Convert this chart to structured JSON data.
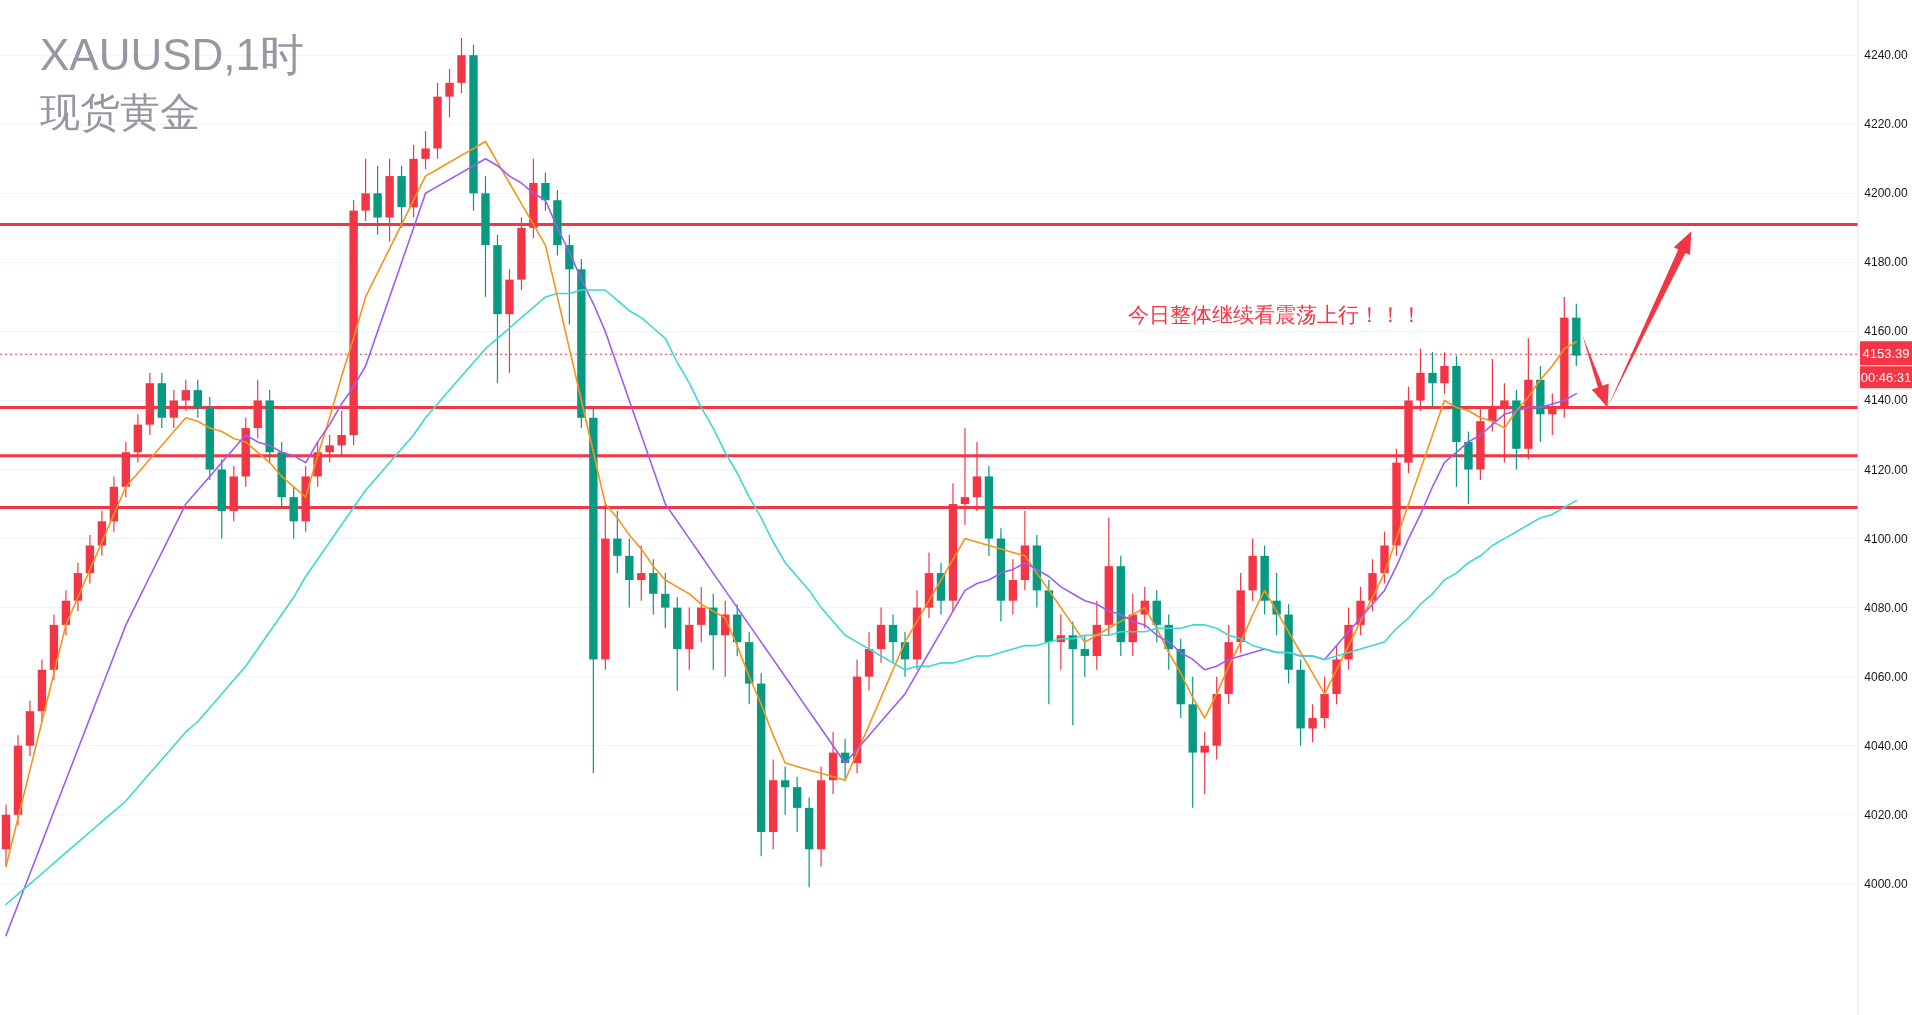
{
  "chart_data": {
    "type": "candlestick",
    "title": "XAUUSD,1时",
    "subtitle": "现货黄金",
    "categories": [
      null,
      null,
      null,
      null,
      null,
      null,
      null,
      null,
      null,
      null,
      null,
      null,
      null,
      null,
      null,
      null,
      null,
      null,
      null,
      null,
      null,
      null,
      null,
      null,
      null,
      null,
      null,
      null,
      null,
      null,
      null,
      null,
      null,
      null,
      null,
      null,
      null,
      null,
      null,
      null,
      null,
      null,
      null,
      null,
      null,
      null,
      null,
      null,
      null,
      null,
      null,
      null,
      null,
      null,
      null,
      null,
      null,
      null,
      null,
      null,
      null,
      null,
      null,
      null,
      null,
      null,
      null,
      null,
      null,
      null,
      null,
      null,
      null,
      null,
      null,
      null,
      null,
      null,
      null,
      null,
      null,
      null,
      null,
      null,
      null,
      null,
      null,
      null,
      null,
      null,
      null,
      null,
      null,
      null,
      null,
      null,
      null,
      null,
      null,
      null,
      null,
      null,
      null,
      null,
      null,
      null,
      null,
      null,
      null,
      null,
      null,
      null,
      null,
      null,
      null,
      null,
      null,
      null,
      null,
      null,
      null,
      null,
      null,
      null,
      null,
      null,
      null,
      null,
      null,
      null,
      null,
      null
    ],
    "ohlc": [
      [
        4010,
        4023,
        4005,
        4020
      ],
      [
        4020,
        4043,
        4017,
        4040
      ],
      [
        4040,
        4053,
        4037,
        4050
      ],
      [
        4050,
        4065,
        4047,
        4062
      ],
      [
        4062,
        4078,
        4059,
        4075
      ],
      [
        4075,
        4085,
        4072,
        4082
      ],
      [
        4082,
        4093,
        4079,
        4090
      ],
      [
        4090,
        4101,
        4087,
        4098
      ],
      [
        4098,
        4108,
        4095,
        4105
      ],
      [
        4105,
        4118,
        4102,
        4115
      ],
      [
        4115,
        4128,
        4112,
        4125
      ],
      [
        4125,
        4136,
        4122,
        4133
      ],
      [
        4133,
        4148,
        4130,
        4145
      ],
      [
        4145,
        4148,
        4132,
        4135
      ],
      [
        4135,
        4143,
        4132,
        4140
      ],
      [
        4140,
        4146,
        4137,
        4143
      ],
      [
        4143,
        4146,
        4135,
        4138
      ],
      [
        4138,
        4141,
        4117,
        4120
      ],
      [
        4120,
        4123,
        4100,
        4108
      ],
      [
        4108,
        4121,
        4105,
        4118
      ],
      [
        4118,
        4135,
        4115,
        4132
      ],
      [
        4132,
        4146,
        4129,
        4140
      ],
      [
        4140,
        4143,
        4122,
        4125
      ],
      [
        4125,
        4128,
        4109,
        4112
      ],
      [
        4112,
        4115,
        4100,
        4105
      ],
      [
        4105,
        4121,
        4102,
        4118
      ],
      [
        4118,
        4128,
        4115,
        4125
      ],
      [
        4125,
        4130,
        4122,
        4127
      ],
      [
        4127,
        4137,
        4124,
        4130
      ],
      [
        4130,
        4198,
        4127,
        4195
      ],
      [
        4195,
        4210,
        4192,
        4200
      ],
      [
        4200,
        4208,
        4188,
        4193
      ],
      [
        4193,
        4210,
        4186,
        4205
      ],
      [
        4205,
        4208,
        4190,
        4196
      ],
      [
        4196,
        4214,
        4193,
        4210
      ],
      [
        4210,
        4218,
        4207,
        4213
      ],
      [
        4213,
        4232,
        4210,
        4228
      ],
      [
        4228,
        4236,
        4222,
        4232
      ],
      [
        4232,
        4245,
        4229,
        4240
      ],
      [
        4240,
        4243,
        4195,
        4200
      ],
      [
        4200,
        4205,
        4170,
        4185
      ],
      [
        4185,
        4188,
        4145,
        4165
      ],
      [
        4165,
        4178,
        4148,
        4175
      ],
      [
        4175,
        4193,
        4172,
        4190
      ],
      [
        4190,
        4210,
        4187,
        4203
      ],
      [
        4203,
        4206,
        4195,
        4198
      ],
      [
        4198,
        4201,
        4182,
        4185
      ],
      [
        4185,
        4188,
        4162,
        4178
      ],
      [
        4178,
        4181,
        4132,
        4135
      ],
      [
        4135,
        4138,
        4032,
        4065
      ],
      [
        4065,
        4110,
        4062,
        4100
      ],
      [
        4100,
        4108,
        4090,
        4095
      ],
      [
        4095,
        4100,
        4080,
        4088
      ],
      [
        4088,
        4098,
        4082,
        4090
      ],
      [
        4090,
        4094,
        4078,
        4084
      ],
      [
        4084,
        4090,
        4074,
        4080
      ],
      [
        4080,
        4083,
        4056,
        4068
      ],
      [
        4068,
        4080,
        4062,
        4075
      ],
      [
        4075,
        4086,
        4070,
        4080
      ],
      [
        4080,
        4084,
        4062,
        4072
      ],
      [
        4072,
        4082,
        4060,
        4078
      ],
      [
        4078,
        4081,
        4066,
        4070
      ],
      [
        4070,
        4073,
        4052,
        4058
      ],
      [
        4058,
        4061,
        4008,
        4015
      ],
      [
        4015,
        4036,
        4010,
        4030
      ],
      [
        4030,
        4034,
        4020,
        4028
      ],
      [
        4028,
        4031,
        4015,
        4022
      ],
      [
        4022,
        4025,
        3999,
        4010
      ],
      [
        4010,
        4034,
        4005,
        4030
      ],
      [
        4030,
        4044,
        4026,
        4038
      ],
      [
        4038,
        4042,
        4030,
        4035
      ],
      [
        4035,
        4065,
        4032,
        4060
      ],
      [
        4060,
        4073,
        4056,
        4068
      ],
      [
        4068,
        4080,
        4064,
        4075
      ],
      [
        4075,
        4078,
        4064,
        4070
      ],
      [
        4070,
        4073,
        4060,
        4065
      ],
      [
        4065,
        4085,
        4062,
        4080
      ],
      [
        4080,
        4096,
        4077,
        4090
      ],
      [
        4090,
        4093,
        4078,
        4082
      ],
      [
        4082,
        4116,
        4079,
        4110
      ],
      [
        4110,
        4132,
        4104,
        4112
      ],
      [
        4112,
        4128,
        4108,
        4118
      ],
      [
        4118,
        4121,
        4095,
        4100
      ],
      [
        4100,
        4103,
        4076,
        4082
      ],
      [
        4082,
        4094,
        4078,
        4088
      ],
      [
        4088,
        4108,
        4085,
        4098
      ],
      [
        4098,
        4101,
        4080,
        4085
      ],
      [
        4085,
        4088,
        4052,
        4070
      ],
      [
        4070,
        4078,
        4062,
        4072
      ],
      [
        4072,
        4076,
        4046,
        4068
      ],
      [
        4068,
        4072,
        4060,
        4066
      ],
      [
        4066,
        4082,
        4062,
        4075
      ],
      [
        4075,
        4106,
        4072,
        4092
      ],
      [
        4092,
        4095,
        4066,
        4070
      ],
      [
        4070,
        4084,
        4066,
        4078
      ],
      [
        4078,
        4086,
        4074,
        4082
      ],
      [
        4082,
        4085,
        4070,
        4075
      ],
      [
        4075,
        4078,
        4062,
        4068
      ],
      [
        4068,
        4071,
        4048,
        4052
      ],
      [
        4052,
        4060,
        4022,
        4038
      ],
      [
        4038,
        4044,
        4026,
        4040
      ],
      [
        4040,
        4060,
        4036,
        4055
      ],
      [
        4055,
        4075,
        4052,
        4070
      ],
      [
        4070,
        4090,
        4067,
        4085
      ],
      [
        4085,
        4100,
        4082,
        4095
      ],
      [
        4095,
        4098,
        4078,
        4082
      ],
      [
        4082,
        4090,
        4072,
        4078
      ],
      [
        4078,
        4081,
        4058,
        4062
      ],
      [
        4062,
        4065,
        4040,
        4045
      ],
      [
        4045,
        4052,
        4041,
        4048
      ],
      [
        4048,
        4060,
        4045,
        4055
      ],
      [
        4055,
        4069,
        4052,
        4065
      ],
      [
        4065,
        4080,
        4062,
        4075
      ],
      [
        4075,
        4086,
        4072,
        4082
      ],
      [
        4082,
        4094,
        4079,
        4090
      ],
      [
        4090,
        4102,
        4087,
        4098
      ],
      [
        4098,
        4126,
        4095,
        4122
      ],
      [
        4122,
        4144,
        4119,
        4140
      ],
      [
        4140,
        4155,
        4137,
        4148
      ],
      [
        4148,
        4154,
        4138,
        4145
      ],
      [
        4145,
        4154,
        4142,
        4150
      ],
      [
        4150,
        4153,
        4115,
        4128
      ],
      [
        4128,
        4131,
        4110,
        4120
      ],
      [
        4120,
        4138,
        4117,
        4134
      ],
      [
        4134,
        4152,
        4131,
        4138
      ],
      [
        4138,
        4145,
        4122,
        4140
      ],
      [
        4140,
        4143,
        4120,
        4126
      ],
      [
        4126,
        4158,
        4123,
        4146
      ],
      [
        4146,
        4150,
        4128,
        4136
      ],
      [
        4136,
        4142,
        4130,
        4138
      ],
      [
        4138,
        4170,
        4135,
        4164
      ],
      [
        4164,
        4168,
        4150,
        4153
      ]
    ],
    "colors": [
      "#f23645",
      "#f23645",
      "#f23645",
      "#f23645",
      "#f23645",
      "#f23645",
      "#f23645",
      "#f23645",
      "#f23645",
      "#f23645",
      "#f23645",
      "#f23645",
      "#f23645",
      "#089981",
      "#f23645",
      "#f23645",
      "#089981",
      "#089981",
      "#089981",
      "#f23645",
      "#f23645",
      "#f23645",
      "#089981",
      "#089981",
      "#089981",
      "#f23645",
      "#f23645",
      "#f23645",
      "#f23645",
      "#f23645",
      "#f23645",
      "#089981",
      "#f23645",
      "#089981",
      "#f23645",
      "#f23645",
      "#f23645",
      "#f23645",
      "#f23645",
      "#089981",
      "#089981",
      "#089981",
      "#f23645",
      "#f23645",
      "#f23645",
      "#089981",
      "#089981",
      "#089981",
      "#089981",
      "#089981",
      "#f23645",
      "#089981",
      "#089981",
      "#f23645",
      "#089981",
      "#089981",
      "#089981",
      "#f23645",
      "#f23645",
      "#089981",
      "#f23645",
      "#089981",
      "#089981",
      "#089981",
      "#f23645",
      "#089981",
      "#089981",
      "#089981",
      "#f23645",
      "#f23645",
      "#089981",
      "#f23645",
      "#f23645",
      "#f23645",
      "#089981",
      "#089981",
      "#f23645",
      "#f23645",
      "#089981",
      "#f23645",
      "#f23645",
      "#f23645",
      "#089981",
      "#089981",
      "#f23645",
      "#f23645",
      "#089981",
      "#089981",
      "#f23645",
      "#089981",
      "#089981",
      "#f23645",
      "#f23645",
      "#089981",
      "#f23645",
      "#f23645",
      "#089981",
      "#089981",
      "#089981",
      "#089981",
      "#f23645",
      "#f23645",
      "#f23645",
      "#f23645",
      "#f23645",
      "#089981",
      "#089981",
      "#089981",
      "#089981",
      "#f23645",
      "#f23645",
      "#f23645",
      "#f23645",
      "#f23645",
      "#f23645",
      "#f23645",
      "#f23645",
      "#f23645",
      "#f23645",
      "#089981",
      "#f23645",
      "#089981",
      "#089981",
      "#f23645",
      "#f23645",
      "#f23645",
      "#089981",
      "#f23645",
      "#089981",
      "#f23645",
      "#f23645",
      "#089981"
    ],
    "series": [
      {
        "type": "line",
        "color": "#f7931a",
        "values": [
          4005,
          4019,
          4033,
          4047,
          4061,
          4075,
          4083,
          4091,
          4099,
          4107,
          4115,
          4119,
          4123,
          4127,
          4131,
          4135,
          4134,
          4132,
          4131,
          4129,
          4128,
          4125,
          4122,
          4118,
          4115,
          4112,
          4124,
          4135,
          4147,
          4158,
          4170,
          4177,
          4184,
          4191,
          4198,
          4205,
          4207,
          4209,
          4211,
          4213,
          4215,
          4209,
          4203,
          4197,
          4191,
          4185,
          4170,
          4155,
          4140,
          4125,
          4110,
          4106,
          4101,
          4097,
          4092,
          4088,
          4086,
          4084,
          4081,
          4079,
          4077,
          4069,
          4060,
          4052,
          4043,
          4035,
          4034,
          4033,
          4032,
          4031,
          4030,
          4038,
          4046,
          4054,
          4062,
          4070,
          4076,
          4082,
          4088,
          4094,
          4100,
          4099,
          4098,
          4097,
          4096,
          4095,
          4090,
          4085,
          4080,
          4075,
          4070,
          4072,
          4074,
          4076,
          4078,
          4080,
          4074,
          4067,
          4061,
          4054,
          4048,
          4055,
          4063,
          4070,
          4078,
          4085,
          4079,
          4073,
          4067,
          4061,
          4055,
          4062,
          4069,
          4076,
          4083,
          4090,
          4100,
          4110,
          4120,
          4130,
          4140,
          4138,
          4137,
          4135,
          4134,
          4132,
          4137,
          4141,
          4146,
          4150,
          4155,
          4157
        ]
      },
      {
        "type": "line",
        "color": "#9c5cf6",
        "values": [
          3985,
          3994,
          4003,
          4012,
          4021,
          4030,
          4039,
          4048,
          4057,
          4066,
          4075,
          4082,
          4089,
          4096,
          4103,
          4110,
          4114,
          4118,
          4122,
          4126,
          4130,
          4128,
          4127,
          4125,
          4124,
          4122,
          4128,
          4133,
          4139,
          4144,
          4150,
          4160,
          4170,
          4180,
          4190,
          4200,
          4202,
          4204,
          4206,
          4208,
          4210,
          4208,
          4205,
          4203,
          4200,
          4198,
          4190,
          4183,
          4175,
          4168,
          4160,
          4150,
          4140,
          4130,
          4120,
          4110,
          4105,
          4100,
          4095,
          4090,
          4085,
          4080,
          4075,
          4070,
          4065,
          4060,
          4055,
          4050,
          4045,
          4040,
          4035,
          4039,
          4043,
          4047,
          4051,
          4055,
          4061,
          4067,
          4073,
          4079,
          4085,
          4087,
          4088,
          4090,
          4091,
          4093,
          4091,
          4089,
          4086,
          4084,
          4082,
          4081,
          4079,
          4078,
          4076,
          4075,
          4072,
          4070,
          4067,
          4065,
          4062,
          4063,
          4065,
          4066,
          4067,
          4068,
          4067,
          4067,
          4066,
          4066,
          4065,
          4069,
          4073,
          4077,
          4081,
          4085,
          4092,
          4100,
          4107,
          4115,
          4122,
          4125,
          4128,
          4130,
          4133,
          4136,
          4137,
          4138,
          4138,
          4139,
          4140,
          4142
        ]
      },
      {
        "type": "line",
        "color": "#3dd8d0",
        "values": [
          3994,
          3997,
          4000,
          4003,
          4006,
          4009,
          4012,
          4015,
          4018,
          4021,
          4024,
          4028,
          4032,
          4036,
          4040,
          4044,
          4047,
          4051,
          4055,
          4059,
          4063,
          4068,
          4073,
          4078,
          4083,
          4089,
          4094,
          4099,
          4104,
          4109,
          4114,
          4118,
          4122,
          4126,
          4130,
          4135,
          4139,
          4143,
          4147,
          4151,
          4155,
          4158,
          4161,
          4164,
          4167,
          4170,
          4171,
          4171,
          4172,
          4172,
          4172,
          4169,
          4166,
          4164,
          4161,
          4158,
          4151,
          4145,
          4138,
          4132,
          4125,
          4119,
          4112,
          4106,
          4099,
          4093,
          4089,
          4085,
          4080,
          4076,
          4072,
          4070,
          4068,
          4066,
          4064,
          4062,
          4063,
          4063,
          4064,
          4064,
          4065,
          4066,
          4066,
          4067,
          4068,
          4069,
          4069,
          4070,
          4071,
          4071,
          4072,
          4072,
          4072,
          4073,
          4073,
          4073,
          4074,
          4074,
          4074,
          4075,
          4075,
          4074,
          4072,
          4071,
          4069,
          4068,
          4067,
          4067,
          4066,
          4066,
          4065,
          4066,
          4067,
          4068,
          4069,
          4070,
          4074,
          4077,
          4081,
          4084,
          4088,
          4090,
          4093,
          4095,
          4098,
          4100,
          4102,
          4104,
          4106,
          4107,
          4109,
          4111
        ]
      }
    ],
    "ylim": [
      3962,
      4256
    ],
    "yticks": [
      {
        "value": 4000,
        "label": "4000.00"
      },
      {
        "value": 4020,
        "label": "4020.00"
      },
      {
        "value": 4040,
        "label": "4040.00"
      },
      {
        "value": 4060,
        "label": "4060.00"
      },
      {
        "value": 4080,
        "label": "4080.00"
      },
      {
        "value": 4100,
        "label": "4100.00"
      },
      {
        "value": 4120,
        "label": "4120.00"
      },
      {
        "value": 4140,
        "label": "4140.00"
      },
      {
        "value": 4160,
        "label": "4160.00"
      },
      {
        "value": 4180,
        "label": "4180.00"
      },
      {
        "value": 4200,
        "label": "4200.00"
      },
      {
        "value": 4220,
        "label": "4220.00"
      },
      {
        "value": 4240,
        "label": "4240.00"
      }
    ],
    "tick_labels": "y",
    "grid": "y",
    "ref_lines": [
      {
        "axis": "y",
        "value": 4153.39,
        "label": "4153.39",
        "color": "#f23645",
        "line_style": "dotted"
      },
      {
        "axis": "y",
        "value": 4191,
        "color": "#f23645",
        "line_style": "solid"
      },
      {
        "axis": "y",
        "value": 4138,
        "color": "#f23645",
        "line_style": "solid"
      },
      {
        "axis": "y",
        "value": 4124,
        "color": "#f23645",
        "line_style": "solid"
      },
      {
        "axis": "y",
        "value": 4109,
        "color": "#f23645",
        "line_style": "solid"
      }
    ],
    "annotations": [
      "今日整体继续看震荡上行！！！",
      "00:46:31"
    ]
  }
}
